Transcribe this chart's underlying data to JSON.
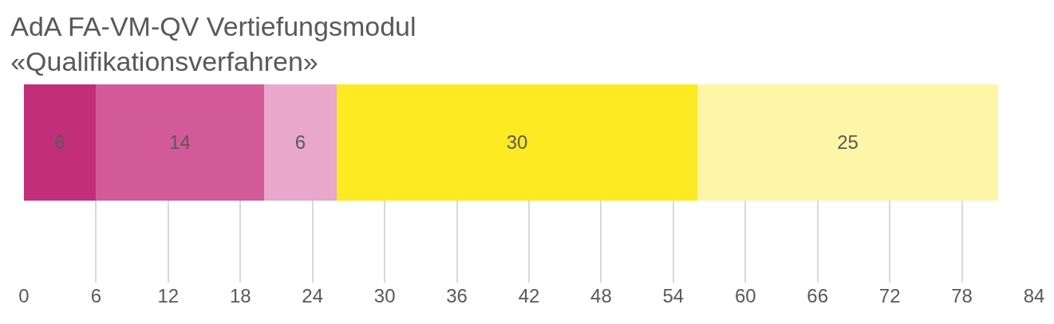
{
  "chart_data": {
    "type": "bar",
    "orientation": "horizontal",
    "stacked": true,
    "title": "AdA FA-VM-QV Vertiefungsmodul\n«Qualifikationsverfahren»",
    "categories": [
      null
    ],
    "series": [
      {
        "color": "#c22e7a",
        "values": [
          6
        ]
      },
      {
        "color": "#d35a98",
        "values": [
          14
        ]
      },
      {
        "color": "#e9a7cb",
        "values": [
          6
        ]
      },
      {
        "color": "#fdea22",
        "values": [
          30
        ]
      },
      {
        "color": "#fef5a6",
        "values": [
          25
        ]
      }
    ],
    "data_labels": true,
    "xlim": [
      0,
      84
    ],
    "xticks": [
      0,
      6,
      12,
      18,
      24,
      30,
      36,
      42,
      48,
      54,
      60,
      66,
      72,
      78,
      84
    ],
    "grid": "x"
  }
}
